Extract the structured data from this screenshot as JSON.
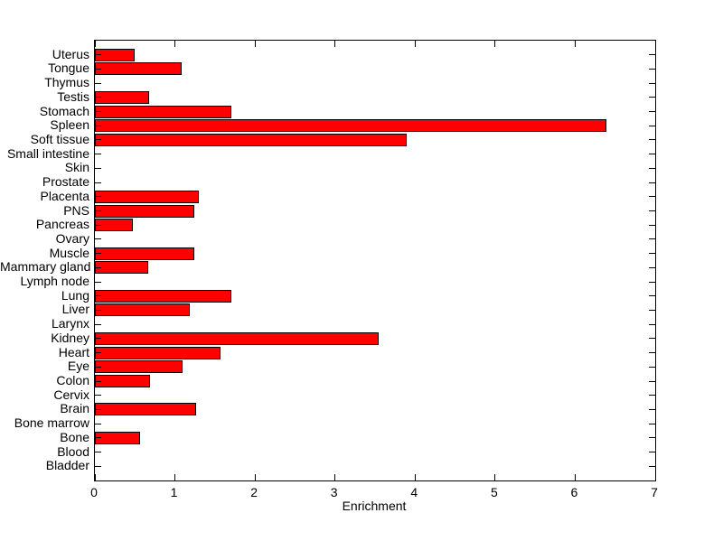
{
  "chart_data": {
    "type": "bar",
    "orientation": "horizontal",
    "title": "",
    "xlabel": "Enrichment",
    "ylabel": "",
    "categories": [
      "Uterus",
      "Tongue",
      "Thymus",
      "Testis",
      "Stomach",
      "Spleen",
      "Soft tissue",
      "Small intestine",
      "Skin",
      "Prostate",
      "Placenta",
      "PNS",
      "Pancreas",
      "Ovary",
      "Muscle",
      "Mammary gland",
      "Lymph node",
      "Lung",
      "Liver",
      "Larynx",
      "Kidney",
      "Heart",
      "Eye",
      "Colon",
      "Cervix",
      "Brain",
      "Bone marrow",
      "Bone",
      "Blood",
      "Bladder"
    ],
    "values": [
      0.5,
      1.08,
      0,
      0.68,
      1.71,
      6.39,
      3.9,
      0,
      0,
      0,
      1.3,
      1.24,
      0.47,
      0,
      1.24,
      0.67,
      0,
      1.71,
      1.18,
      0,
      3.55,
      1.57,
      1.1,
      0.69,
      0,
      1.26,
      0,
      0.56,
      0,
      0
    ],
    "xlim": [
      0,
      7
    ],
    "xticks": [
      "0",
      "1",
      "2",
      "3",
      "4",
      "5",
      "6",
      "7"
    ],
    "grid": false,
    "legend": "none",
    "bar_color": "#ff0000",
    "bar_edge_color": "#000000",
    "axis_color": "#000000",
    "background_color": "#ffffff"
  }
}
